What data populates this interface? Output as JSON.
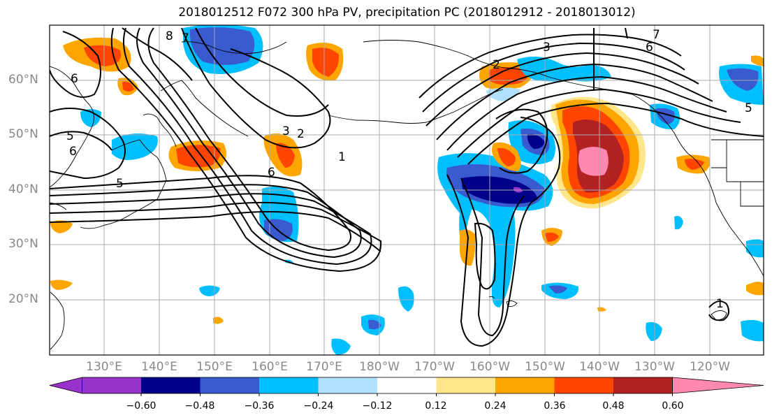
{
  "title": "2018012512 F072 300 hPa PV, precipitation PC (2018012912 - 2018013012)",
  "lat_labels": [
    "60°N",
    "50°N",
    "40°N",
    "30°N",
    "20°N"
  ],
  "lon_labels": [
    "130°E",
    "140°E",
    "150°E",
    "160°E",
    "170°E",
    "180°W",
    "170°W",
    "160°W",
    "150°W",
    "140°W",
    "130°W",
    "120°W"
  ],
  "contour_labels": [
    "8",
    "7",
    "6",
    "5",
    "6",
    "5",
    "3",
    "2",
    "1",
    "6",
    "2",
    "3",
    "6",
    "7",
    "5",
    "1"
  ],
  "colorbar": {
    "ticks": [
      "−0.60",
      "−0.48",
      "−0.36",
      "−0.24",
      "−0.12",
      "0.12",
      "0.24",
      "0.36",
      "0.48",
      "0.60"
    ],
    "colors": [
      "#9932CC",
      "#00008B",
      "#3A5BD0",
      "#00BFFF",
      "#B0E2FF",
      "#FFFFFF",
      "#FFE68A",
      "#FFA500",
      "#FF4500",
      "#B22222",
      "#FF88B0"
    ]
  }
}
